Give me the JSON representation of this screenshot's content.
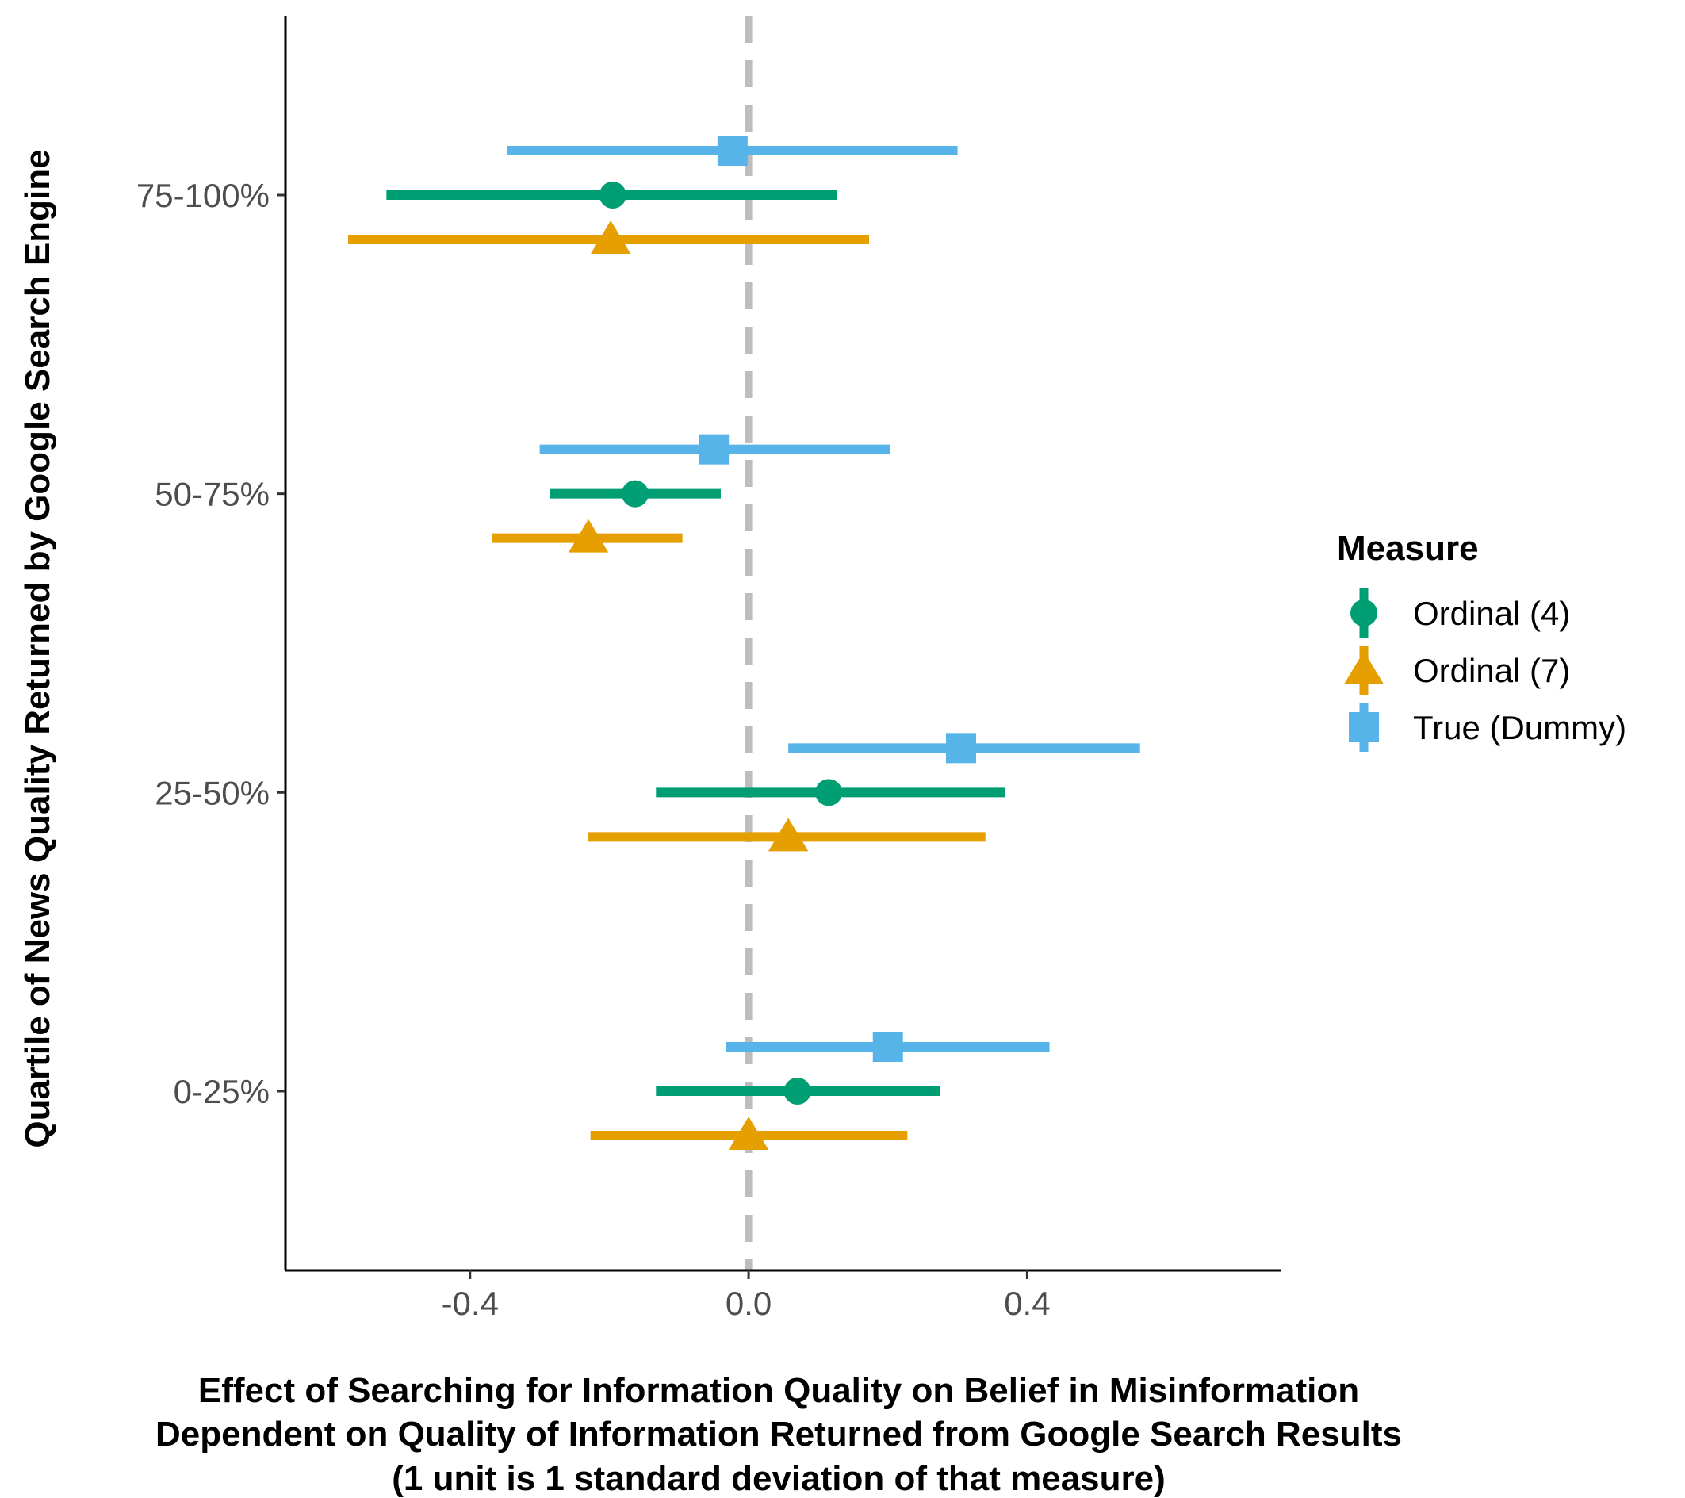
{
  "chart_data": {
    "type": "scatter",
    "subtype": "coefficient-plot-horizontal-error-bars",
    "xlabel_lines": [
      "Effect of Searching for Information Quality on Belief in Misinformation",
      "Dependent on Quality of Information Returned from Google Search Results",
      "(1 unit is 1 standard deviation of that measure)"
    ],
    "ylabel": "Quartile of News Quality Returned by Google Search Engine",
    "xlim": [
      -0.665,
      0.765
    ],
    "x_ticks": [
      -0.4,
      0.0,
      0.4
    ],
    "x_tick_labels": [
      "-0.4",
      "0.0",
      "0.4"
    ],
    "categories": [
      "0-25%",
      "25-50%",
      "50-75%",
      "75-100%"
    ],
    "reference_line": {
      "x": 0,
      "style": "dashed",
      "color": "#bdbdbd"
    },
    "grid": false,
    "legend": {
      "title": "Measure",
      "position": "right",
      "entries": [
        "Ordinal (4)",
        "Ordinal (7)",
        "True (Dummy)"
      ]
    },
    "series": [
      {
        "name": "Ordinal (4)",
        "color": "#009e73",
        "shape": "circle",
        "estimates": [
          0.07,
          0.115,
          -0.163,
          -0.195
        ],
        "lower": [
          -0.133,
          -0.133,
          -0.285,
          -0.52
        ],
        "upper": [
          0.275,
          0.368,
          -0.04,
          0.127
        ]
      },
      {
        "name": "Ordinal (7)",
        "color": "#e69f00",
        "shape": "triangle",
        "estimates": [
          0.0,
          0.057,
          -0.23,
          -0.198
        ],
        "lower": [
          -0.227,
          -0.23,
          -0.368,
          -0.575
        ],
        "upper": [
          0.228,
          0.34,
          -0.095,
          0.173
        ]
      },
      {
        "name": "True (Dummy)",
        "color": "#56b4e9",
        "shape": "square",
        "estimates": [
          0.2,
          0.305,
          -0.05,
          -0.023
        ],
        "lower": [
          -0.033,
          0.057,
          -0.3,
          -0.347
        ],
        "upper": [
          0.432,
          0.562,
          0.203,
          0.3
        ]
      }
    ]
  }
}
